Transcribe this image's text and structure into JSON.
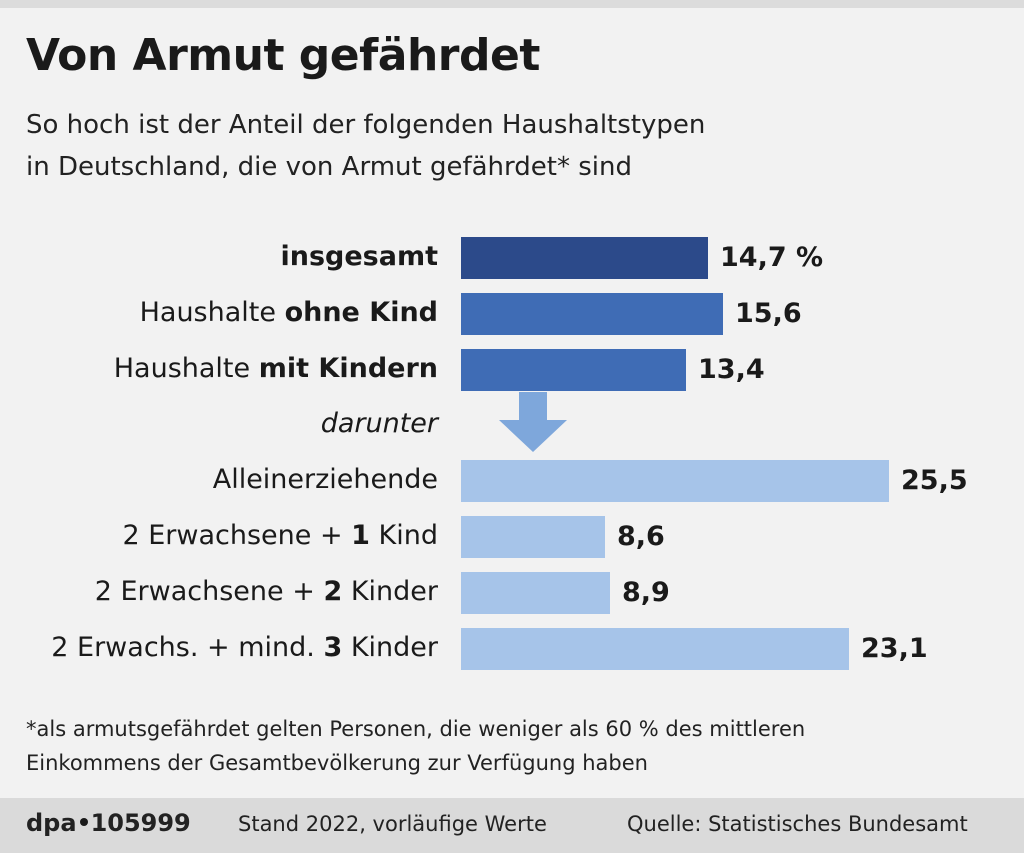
{
  "title": "Von Armut gefährdet",
  "subtitle_line1": "So hoch ist der Anteil der folgenden Haushaltstypen",
  "subtitle_line2": "in Deutschland, die von Armut gefährdet* sind",
  "darunter": "darunter",
  "footnote_line1": "*als armutsgefährdet gelten Personen, die weniger als 60 % des mittleren",
  "footnote_line2": "Einkommens der Gesamtbevölkerung zur Verfügung haben",
  "footer": {
    "brand": "dpa",
    "id": "105999",
    "stand": "Stand 2022, vorläufige Werte",
    "source": "Quelle: Statistisches Bundesamt"
  },
  "colors": {
    "dark": "#2c4a8a",
    "mid": "#3f6cb5",
    "light": "#a6c4e9",
    "arrow": "#7ea7db"
  },
  "chart_data": {
    "type": "bar",
    "orientation": "horizontal",
    "unit": "%",
    "categories": [
      "insgesamt",
      "Haushalte ohne Kind",
      "Haushalte mit Kindern",
      "Alleinerziehende",
      "2 Erwachsene + 1 Kind",
      "2 Erwachsene + 2 Kinder",
      "2 Erwachs. + mind. 3 Kinder"
    ],
    "label_parts": [
      {
        "pre": "",
        "bold": "insgesamt",
        "post": ""
      },
      {
        "pre": "Haushalte ",
        "bold": "ohne Kind",
        "post": ""
      },
      {
        "pre": "Haushalte ",
        "bold": "mit Kindern",
        "post": ""
      },
      {
        "pre": "Alleinerziehende",
        "bold": "",
        "post": ""
      },
      {
        "pre": "2 Erwachsene + ",
        "bold": "1",
        "post": " Kind"
      },
      {
        "pre": "2 Erwachsene + ",
        "bold": "2",
        "post": " Kinder"
      },
      {
        "pre": "2 Erwachs. + mind. ",
        "bold": "3",
        "post": " Kinder"
      }
    ],
    "values": [
      14.7,
      15.6,
      13.4,
      25.5,
      8.6,
      8.9,
      23.1
    ],
    "value_labels": [
      "14,7 %",
      "15,6",
      "13,4",
      "25,5",
      "8,6",
      "8,9",
      "23,1"
    ],
    "bar_colors": [
      "dark",
      "mid",
      "mid",
      "light",
      "light",
      "light",
      "light"
    ]
  }
}
